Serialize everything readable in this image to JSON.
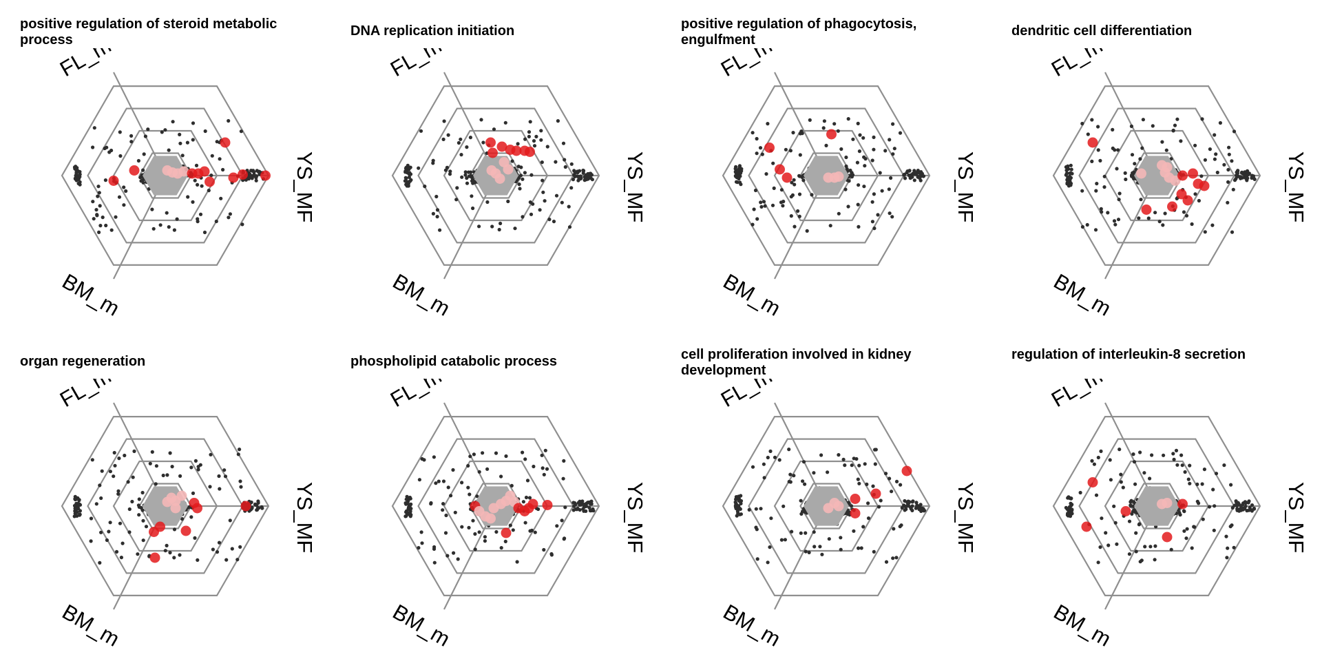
{
  "figure": {
    "axis_labels": [
      "FL_mo",
      "YS_MF",
      "BM_m"
    ]
  },
  "chart_data": [
    {
      "type": "scatter",
      "title": "positive regulation of steroid metabolic process",
      "axes": [
        "FL_mo",
        "YS_MF",
        "BM_m"
      ],
      "rings": 4,
      "highlight_points": [
        [
          0.02,
          0.05
        ],
        [
          0.07,
          0.03
        ],
        [
          0.12,
          0.02
        ],
        [
          0.18,
          0.04
        ],
        [
          0.26,
          0.02
        ],
        [
          0.32,
          0.02
        ],
        [
          0.38,
          0.04
        ],
        [
          0.43,
          -0.06
        ],
        [
          0.58,
          0.32
        ],
        [
          0.66,
          -0.02
        ],
        [
          0.75,
          0.01
        ],
        [
          0.97,
          0.0
        ],
        [
          -0.3,
          0.05
        ],
        [
          -0.5,
          -0.05
        ]
      ]
    },
    {
      "type": "scatter",
      "title": "DNA replication initiation",
      "axes": [
        "FL_mo",
        "YS_MF",
        "BM_m"
      ],
      "rings": 4,
      "highlight_points": [
        [
          -0.05,
          0.32
        ],
        [
          -0.03,
          0.22
        ],
        [
          0.06,
          0.28
        ],
        [
          0.14,
          0.25
        ],
        [
          0.2,
          0.24
        ],
        [
          0.28,
          0.24
        ],
        [
          0.33,
          0.23
        ],
        [
          0.08,
          0.13
        ],
        [
          0.12,
          0.06
        ],
        [
          0.0,
          0.02
        ],
        [
          0.04,
          -0.03
        ],
        [
          -0.04,
          0.05
        ]
      ]
    },
    {
      "type": "scatter",
      "title": "positive regulation of phagocytosis, engulfment",
      "axes": [
        "FL_mo",
        "YS_MF",
        "BM_m"
      ],
      "rings": 4,
      "highlight_points": [
        [
          0.05,
          0.4
        ],
        [
          -0.55,
          0.27
        ],
        [
          -0.45,
          0.06
        ],
        [
          -0.38,
          -0.02
        ],
        [
          0.02,
          -0.02
        ],
        [
          0.08,
          -0.02
        ],
        [
          0.12,
          -0.01
        ]
      ]
    },
    {
      "type": "scatter",
      "title": "dendritic cell differentiation",
      "axes": [
        "FL_mo",
        "YS_MF",
        "BM_m"
      ],
      "rings": 4,
      "highlight_points": [
        [
          -0.62,
          0.32
        ],
        [
          -0.15,
          0.02
        ],
        [
          0.05,
          0.1
        ],
        [
          0.08,
          0.03
        ],
        [
          0.12,
          -0.02
        ],
        [
          0.18,
          -0.05
        ],
        [
          0.25,
          0.0
        ],
        [
          0.35,
          0.02
        ],
        [
          0.4,
          -0.08
        ],
        [
          0.46,
          -0.1
        ],
        [
          0.24,
          -0.18
        ],
        [
          0.3,
          -0.24
        ],
        [
          0.15,
          -0.3
        ],
        [
          -0.1,
          -0.33
        ],
        [
          0.1,
          0.08
        ]
      ]
    },
    {
      "type": "scatter",
      "title": "organ regeneration",
      "axes": [
        "FL_mo",
        "YS_MF",
        "BM_m"
      ],
      "rings": 4,
      "highlight_points": [
        [
          0.02,
          0.04
        ],
        [
          0.06,
          0.08
        ],
        [
          0.1,
          0.05
        ],
        [
          0.16,
          0.1
        ],
        [
          0.1,
          -0.02
        ],
        [
          0.28,
          0.03
        ],
        [
          0.31,
          -0.02
        ],
        [
          -0.05,
          -0.2
        ],
        [
          -0.11,
          -0.25
        ],
        [
          0.2,
          -0.24
        ],
        [
          -0.1,
          -0.5
        ],
        [
          0.78,
          0.0
        ]
      ]
    },
    {
      "type": "scatter",
      "title": "phospholipid catabolic process",
      "axes": [
        "FL_mo",
        "YS_MF",
        "BM_m"
      ],
      "rings": 4,
      "highlight_points": [
        [
          -0.2,
          0.0
        ],
        [
          -0.16,
          -0.05
        ],
        [
          -0.1,
          -0.1
        ],
        [
          -0.05,
          -0.12
        ],
        [
          0.05,
          0.02
        ],
        [
          0.1,
          0.05
        ],
        [
          0.18,
          0.04
        ],
        [
          0.22,
          -0.02
        ],
        [
          0.28,
          -0.05
        ],
        [
          0.32,
          -0.02
        ],
        [
          0.36,
          0.02
        ],
        [
          0.5,
          0.01
        ],
        [
          0.1,
          -0.26
        ],
        [
          -0.02,
          -0.02
        ],
        [
          0.14,
          0.1
        ]
      ]
    },
    {
      "type": "scatter",
      "title": "cell proliferation involved in kidney development",
      "axes": [
        "FL_mo",
        "YS_MF",
        "BM_m"
      ],
      "rings": 4,
      "highlight_points": [
        [
          0.78,
          0.34
        ],
        [
          0.48,
          0.12
        ],
        [
          0.28,
          0.07
        ],
        [
          0.28,
          -0.07
        ],
        [
          0.08,
          0.03
        ],
        [
          0.12,
          0.0
        ],
        [
          0.02,
          -0.02
        ]
      ]
    },
    {
      "type": "scatter",
      "title": "regulation of interleukin-8 secretion",
      "axes": [
        "FL_mo",
        "YS_MF",
        "BM_m"
      ],
      "rings": 4,
      "highlight_points": [
        [
          -0.62,
          0.23
        ],
        [
          -0.68,
          -0.2
        ],
        [
          -0.3,
          -0.05
        ],
        [
          0.1,
          -0.3
        ],
        [
          0.05,
          0.02
        ],
        [
          0.1,
          0.03
        ],
        [
          0.25,
          0.02
        ]
      ]
    }
  ]
}
